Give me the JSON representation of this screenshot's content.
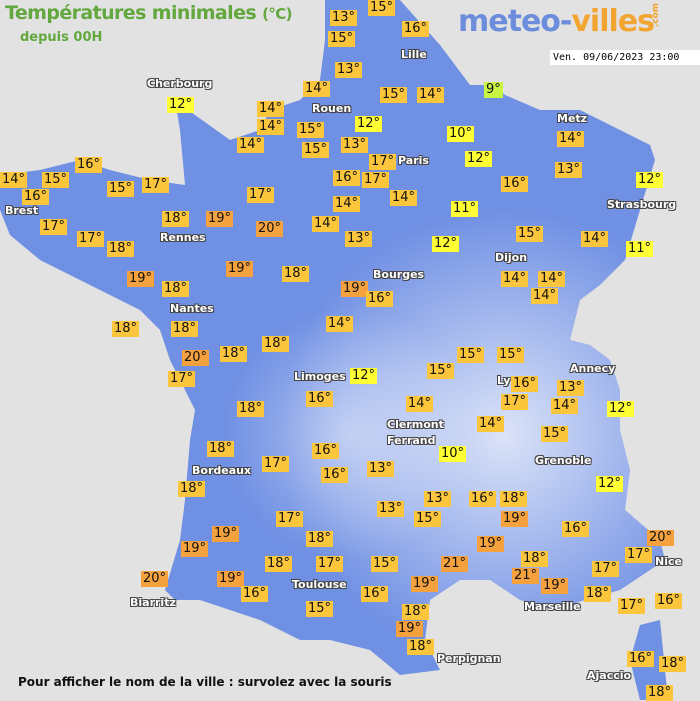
{
  "header": {
    "title": "Températures minimales",
    "unit": "(°C)",
    "subtitle": "depuis 00H"
  },
  "logo": {
    "part1": "meteo-",
    "part2": "villes",
    "suffix": ".com"
  },
  "timestamp": "Ven. 09/06/2023 23:00",
  "footer": "Pour afficher le nom de la ville : survolez avec la souris",
  "colors": {
    "land": "#7090e4",
    "sea": "#e3e2e2",
    "cold": "#c8f542",
    "cool": "#ffff33",
    "mild": "#fcc63c",
    "warm": "#f5a23e",
    "title": "#62a83e"
  },
  "cities": [
    "Cherbourg",
    "Lille",
    "Rouen",
    "Paris",
    "Metz",
    "Strasbourg",
    "Brest",
    "Rennes",
    "Dijon",
    "Bourges",
    "Nantes",
    "Limoges",
    "Annecy",
    "Ly",
    "Clermont",
    "Ferrand",
    "Grenoble",
    "Bordeaux",
    "Toulouse",
    "Nice",
    "Marseille",
    "Biarritz",
    "Perpignan",
    "Ajaccio"
  ],
  "temperatures": [
    13,
    15,
    15,
    16,
    13,
    14,
    15,
    14,
    9,
    12,
    14,
    14,
    15,
    15,
    12,
    10,
    14,
    13,
    17,
    12,
    14,
    13,
    16,
    17,
    14,
    16,
    12,
    16,
    14,
    15,
    16,
    15,
    17,
    17,
    14,
    14,
    11,
    17,
    18,
    19,
    20,
    17,
    18,
    13,
    12,
    15,
    14,
    11,
    19,
    18,
    19,
    18,
    19,
    16,
    14,
    14,
    14,
    14,
    18,
    18,
    20,
    18,
    18,
    17,
    12,
    15,
    15,
    16,
    17,
    15,
    13,
    14,
    12,
    18,
    16,
    14,
    14,
    15,
    18,
    16,
    10,
    17,
    16,
    13,
    18,
    12,
    13,
    16,
    18,
    13,
    15,
    19,
    16,
    17,
    19,
    19,
    18,
    19,
    20,
    17,
    18,
    17,
    15,
    21,
    18,
    17,
    20,
    19,
    19,
    21,
    19,
    18,
    16,
    16,
    17,
    16,
    15,
    18,
    19,
    18,
    16,
    18,
    18
  ]
}
